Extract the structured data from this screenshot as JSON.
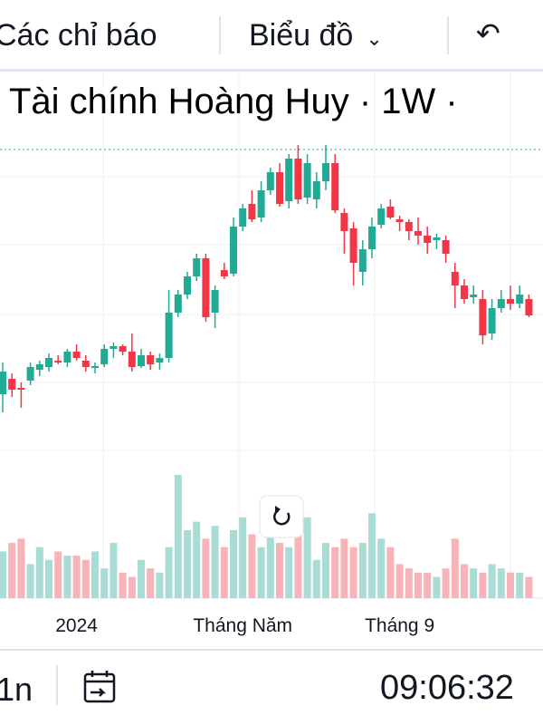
{
  "toolbar": {
    "indicators": "Các chỉ báo",
    "chart_menu": "Biểu đồ"
  },
  "chart_data": {
    "type": "candlestick",
    "title": "Tài chính Hoàng Huy · 1W ·",
    "categories": [
      null,
      null,
      null,
      null,
      null,
      null,
      null,
      null,
      "2024",
      null,
      null,
      null,
      null,
      null,
      null,
      null,
      null,
      null,
      null,
      null,
      null,
      null,
      null,
      null,
      null,
      null,
      "Tháng Năm",
      null,
      null,
      null,
      null,
      null,
      null,
      null,
      null,
      null,
      null,
      null,
      null,
      null,
      null,
      null,
      null,
      "Tháng 9",
      null,
      null,
      null,
      null,
      null,
      null,
      null,
      null,
      null,
      null,
      null,
      null,
      null,
      null
    ],
    "open": [
      45,
      62,
      52,
      60,
      72,
      75,
      82,
      80,
      92,
      82,
      74,
      78,
      95,
      98,
      92,
      76,
      88,
      80,
      85,
      135,
      155,
      175,
      195,
      135,
      182,
      178,
      230,
      255,
      240,
      270,
      290,
      258,
      305,
      262,
      260,
      280,
      300,
      245,
      228,
      180,
      205,
      232,
      252,
      238,
      235,
      225,
      220,
      215,
      215,
      180,
      165,
      152,
      150,
      112,
      140,
      150,
      145,
      150
    ],
    "high": [
      80,
      68,
      58,
      80,
      82,
      90,
      88,
      95,
      100,
      88,
      80,
      100,
      102,
      100,
      112,
      95,
      92,
      90,
      160,
      160,
      180,
      200,
      200,
      165,
      190,
      240,
      255,
      270,
      280,
      295,
      300,
      310,
      320,
      310,
      290,
      320,
      310,
      250,
      235,
      215,
      240,
      255,
      260,
      242,
      238,
      240,
      230,
      222,
      220,
      190,
      172,
      165,
      160,
      150,
      160,
      165,
      165,
      155
    ],
    "low": [
      25,
      42,
      30,
      55,
      65,
      70,
      78,
      75,
      82,
      70,
      68,
      75,
      85,
      88,
      70,
      74,
      72,
      72,
      80,
      130,
      150,
      170,
      125,
      118,
      172,
      175,
      225,
      235,
      235,
      265,
      252,
      250,
      255,
      255,
      250,
      270,
      245,
      200,
      165,
      165,
      195,
      228,
      238,
      225,
      215,
      210,
      200,
      205,
      190,
      140,
      145,
      145,
      100,
      105,
      135,
      138,
      140,
      130
    ],
    "close": [
      70,
      50,
      50,
      75,
      78,
      85,
      80,
      92,
      85,
      75,
      76,
      95,
      98,
      92,
      75,
      88,
      78,
      85,
      135,
      155,
      175,
      195,
      130,
      160,
      175,
      230,
      250,
      238,
      270,
      290,
      255,
      305,
      260,
      300,
      280,
      300,
      248,
      225,
      190,
      205,
      230,
      250,
      240,
      235,
      225,
      220,
      212,
      218,
      200,
      165,
      150,
      155,
      110,
      140,
      150,
      145,
      155,
      132
    ],
    "ylim": [
      0,
      340
    ],
    "up_color": "#22ab94",
    "down_color": "#f23645",
    "volume": [
      55,
      65,
      70,
      40,
      60,
      45,
      55,
      50,
      50,
      45,
      55,
      35,
      65,
      30,
      25,
      45,
      35,
      30,
      60,
      145,
      80,
      90,
      70,
      85,
      60,
      80,
      95,
      75,
      60,
      75,
      65,
      60,
      110,
      95,
      45,
      65,
      60,
      70,
      60,
      65,
      100,
      70,
      60,
      40,
      35,
      30,
      30,
      25,
      35,
      70,
      40,
      35,
      30,
      40,
      35,
      30,
      30,
      25
    ],
    "volume_lim": [
      0,
      160
    ],
    "volume_up_color": "#a8dcd5",
    "volume_down_color": "#f7b3b7"
  },
  "footer": {
    "interval": "1n",
    "clock": "09:06:32"
  }
}
